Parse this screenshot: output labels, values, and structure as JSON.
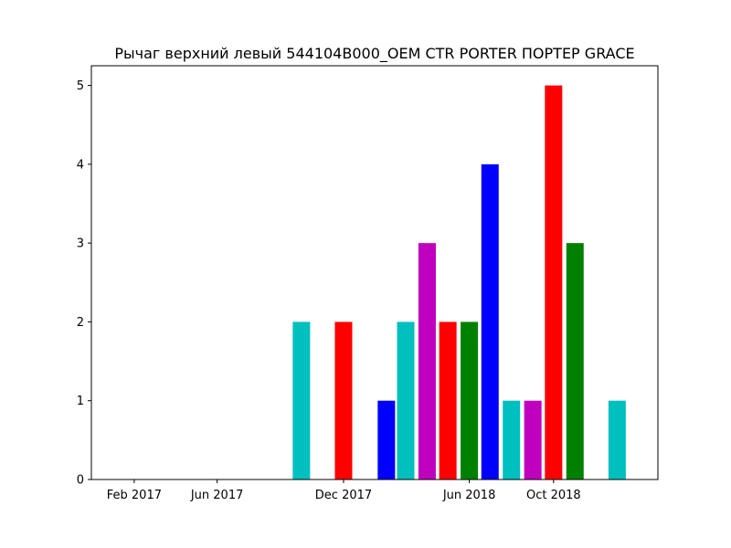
{
  "chart_data": {
    "type": "bar",
    "title": "Рычаг верхний левый 544104B000_OEM CTR PORTER ПОРТЕР GRACE",
    "xlabel": "",
    "ylabel": "",
    "x": [
      "2017-10",
      "2017-12",
      "2018-02",
      "2018-03",
      "2018-04",
      "2018-05",
      "2018-06",
      "2018-07",
      "2018-08",
      "2018-09",
      "2018-10",
      "2018-11",
      "2019-01"
    ],
    "values": [
      2,
      2,
      1,
      2,
      3,
      2,
      2,
      4,
      1,
      1,
      5,
      3,
      1
    ],
    "colors": [
      "#00bfbf",
      "#ff0000",
      "#0000ff",
      "#00bfbf",
      "#bf00bf",
      "#ff0000",
      "#008000",
      "#0000ff",
      "#00bfbf",
      "#bf00bf",
      "#ff0000",
      "#008000",
      "#00bfbf"
    ],
    "xlim": [
      "2016-12",
      "2019-03"
    ],
    "ylim": [
      0,
      5.25
    ],
    "xticks": [
      {
        "value": "2017-02",
        "label": "Feb 2017"
      },
      {
        "value": "2017-06",
        "label": "Jun 2017"
      },
      {
        "value": "2017-12",
        "label": "Dec 2017"
      },
      {
        "value": "2018-06",
        "label": "Jun 2018"
      },
      {
        "value": "2018-10",
        "label": "Oct 2018"
      }
    ],
    "yticks": [
      0,
      1,
      2,
      3,
      4,
      5
    ],
    "grid": false,
    "legend": null
  }
}
